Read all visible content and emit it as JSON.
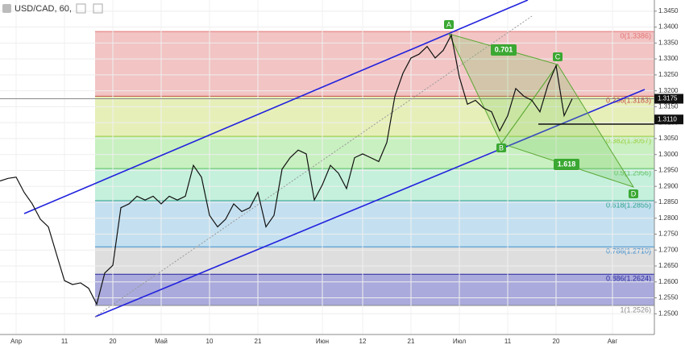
{
  "chart_data": {
    "type": "line",
    "title": "USD/CAD, 60,",
    "categories": [
      null,
      null,
      "Апр",
      null,
      null,
      null,
      null,
      null,
      "11",
      null,
      null,
      null,
      null,
      null,
      "20",
      null,
      null,
      null,
      null,
      null,
      "Май",
      null,
      null,
      null,
      null,
      null,
      "10",
      null,
      null,
      null,
      null,
      null,
      "21",
      null,
      null,
      null,
      null,
      null,
      null,
      null,
      "Июн",
      null,
      null,
      null,
      null,
      "12",
      null,
      null,
      null,
      null,
      null,
      "21",
      null,
      null,
      null,
      null,
      null,
      "Июл",
      null,
      null,
      null,
      null,
      null,
      "11",
      null,
      null,
      null,
      null,
      null,
      "20",
      null,
      null,
      null,
      null,
      null,
      null,
      "Авг",
      null,
      null,
      null,
      null
    ],
    "series": [
      {
        "name": "USD/CAD",
        "color": "#111111",
        "values": [
          1.2917,
          1.2925,
          1.2929,
          1.2881,
          1.2845,
          1.2797,
          1.2773,
          1.2688,
          1.2604,
          1.2592,
          1.2597,
          1.258,
          1.253,
          1.2628,
          1.2652,
          1.2833,
          1.2845,
          1.2869,
          1.2857,
          1.2869,
          1.2845,
          1.2869,
          1.2857,
          1.2869,
          1.2966,
          1.2929,
          1.2809,
          1.2773,
          1.2797,
          1.2845,
          1.2821,
          1.2833,
          1.2881,
          1.2773,
          1.2809,
          1.2954,
          1.299,
          1.3014,
          1.3002,
          1.2857,
          1.2905,
          1.2966,
          1.2941,
          1.2893,
          1.299,
          1.3002,
          1.299,
          1.2978,
          1.3038,
          1.3183,
          1.3255,
          1.3303,
          1.3315,
          1.3339,
          1.3303,
          1.3327,
          1.3375,
          1.3243,
          1.3158,
          1.317,
          1.3146,
          1.3134,
          1.3074,
          1.3122,
          1.3207,
          1.3183,
          1.317,
          1.3134,
          1.3219,
          1.3279,
          1.3122,
          1.3175,
          null,
          null,
          null,
          null,
          null,
          null,
          null,
          null,
          null
        ]
      }
    ],
    "ylim": [
      1.2435,
      1.3485
    ],
    "yticks": [
      {
        "value": 1.25,
        "label": "1.2500"
      },
      {
        "value": 1.255,
        "label": "1.2550"
      },
      {
        "value": 1.26,
        "label": "1.2600"
      },
      {
        "value": 1.265,
        "label": "1.2650"
      },
      {
        "value": 1.27,
        "label": "1.2700"
      },
      {
        "value": 1.275,
        "label": "1.2750"
      },
      {
        "value": 1.28,
        "label": "1.2800"
      },
      {
        "value": 1.285,
        "label": "1.2850"
      },
      {
        "value": 1.29,
        "label": "1.2900"
      },
      {
        "value": 1.295,
        "label": "1.2950"
      },
      {
        "value": 1.3,
        "label": "1.3000"
      },
      {
        "value": 1.305,
        "label": "1.3050"
      },
      {
        "value": 1.31,
        "label": "1.3100"
      },
      {
        "value": 1.315,
        "label": "1.3150"
      },
      {
        "value": 1.32,
        "label": "1.3200"
      },
      {
        "value": 1.325,
        "label": "1.3250"
      },
      {
        "value": 1.33,
        "label": "1.3300"
      },
      {
        "value": 1.335,
        "label": "1.3350"
      },
      {
        "value": 1.34,
        "label": "1.3400"
      },
      {
        "value": 1.345,
        "label": "1.3450"
      }
    ],
    "fib_levels": [
      {
        "label": "0(1.3386)",
        "value": 1.3386,
        "color": "#e57373",
        "fill": "#f2c4c4"
      },
      {
        "label": "0.236(1.3183)",
        "value": 1.3183,
        "color": "#c94a4a",
        "fill": "#e6efb8"
      },
      {
        "label": "0.382(1.3057)",
        "value": 1.3057,
        "color": "#9ccc3c",
        "fill": "#c8f0c0"
      },
      {
        "label": "0.5(1.2956)",
        "value": 1.2956,
        "color": "#5fbf5f",
        "fill": "#c4f0dc"
      },
      {
        "label": "0.618(1.2855)",
        "value": 1.2855,
        "color": "#2aa08a",
        "fill": "#c4e0f0"
      },
      {
        "label": "0.786(1.2710)",
        "value": 1.271,
        "color": "#3d8fcf",
        "fill": "#dedede"
      },
      {
        "label": "0.886(1.2624)",
        "value": 1.2624,
        "color": "#2828a0",
        "fill": "#aaaadc"
      },
      {
        "label": "1(1.2526)",
        "value": 1.2526,
        "color": "#888888"
      }
    ],
    "price_tags": [
      {
        "label": "1.3175",
        "value": 1.3175,
        "color": "#111111"
      },
      {
        "label": "1.3110",
        "value": 1.311,
        "color": "#111111"
      }
    ],
    "pattern": {
      "points": [
        "A",
        "B",
        "C",
        "D"
      ],
      "ratios": [
        "0.701",
        "1.618"
      ]
    }
  }
}
